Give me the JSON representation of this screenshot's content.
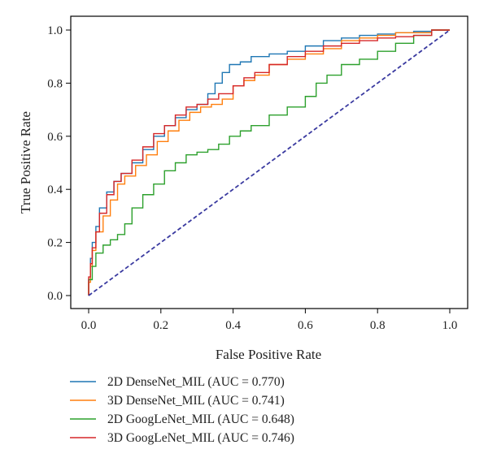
{
  "chart_data": {
    "type": "line",
    "xlabel": "False Positive Rate",
    "ylabel": "True Positive Rate",
    "xlim": [
      -0.05,
      1.05
    ],
    "ylim": [
      -0.04,
      1.04
    ],
    "xticks": [
      0.0,
      0.2,
      0.4,
      0.6,
      0.8,
      1.0
    ],
    "yticks": [
      0.0,
      0.2,
      0.4,
      0.6,
      0.8,
      1.0
    ],
    "tick_labels_x": [
      "0.0",
      "0.2",
      "0.4",
      "0.6",
      "0.8",
      "1.0"
    ],
    "tick_labels_y": [
      "0.0",
      "0.2",
      "0.4",
      "0.6",
      "0.8",
      "1.0"
    ],
    "grid": false,
    "legend_position": "bottom",
    "series": [
      {
        "name": "2D DenseNet_MIL (AUC = 0.770)",
        "color": "#1f77b4",
        "x": [
          0,
          0.005,
          0.01,
          0.02,
          0.03,
          0.05,
          0.07,
          0.09,
          0.12,
          0.15,
          0.18,
          0.21,
          0.24,
          0.27,
          0.3,
          0.33,
          0.35,
          0.37,
          0.39,
          0.42,
          0.45,
          0.5,
          0.55,
          0.6,
          0.65,
          0.7,
          0.75,
          0.8,
          0.85,
          0.9,
          0.95,
          1.0
        ],
        "y": [
          0,
          0.06,
          0.14,
          0.2,
          0.26,
          0.33,
          0.39,
          0.43,
          0.46,
          0.5,
          0.55,
          0.6,
          0.64,
          0.67,
          0.7,
          0.72,
          0.76,
          0.8,
          0.84,
          0.87,
          0.88,
          0.9,
          0.91,
          0.92,
          0.94,
          0.96,
          0.97,
          0.98,
          0.985,
          0.99,
          0.995,
          1.0
        ]
      },
      {
        "name": "3D DenseNet_MIL (AUC = 0.741)",
        "color": "#ff7f0e",
        "x": [
          0,
          0.005,
          0.01,
          0.02,
          0.04,
          0.06,
          0.08,
          0.1,
          0.13,
          0.16,
          0.19,
          0.22,
          0.25,
          0.28,
          0.31,
          0.34,
          0.37,
          0.4,
          0.43,
          0.46,
          0.5,
          0.55,
          0.6,
          0.65,
          0.7,
          0.75,
          0.8,
          0.85,
          0.9,
          0.95,
          1.0
        ],
        "y": [
          0,
          0.05,
          0.11,
          0.17,
          0.24,
          0.3,
          0.36,
          0.42,
          0.45,
          0.49,
          0.53,
          0.58,
          0.62,
          0.66,
          0.69,
          0.71,
          0.72,
          0.74,
          0.79,
          0.81,
          0.83,
          0.87,
          0.89,
          0.91,
          0.93,
          0.96,
          0.97,
          0.98,
          0.99,
          0.99,
          1.0
        ]
      },
      {
        "name": "2D GoogLeNet_MIL (AUC = 0.648)",
        "color": "#2ca02c",
        "x": [
          0,
          0.01,
          0.02,
          0.04,
          0.06,
          0.08,
          0.1,
          0.12,
          0.15,
          0.18,
          0.21,
          0.24,
          0.27,
          0.3,
          0.33,
          0.36,
          0.39,
          0.42,
          0.45,
          0.5,
          0.55,
          0.6,
          0.63,
          0.66,
          0.7,
          0.75,
          0.8,
          0.85,
          0.9,
          0.95,
          1.0
        ],
        "y": [
          0,
          0.06,
          0.11,
          0.16,
          0.19,
          0.21,
          0.23,
          0.27,
          0.33,
          0.38,
          0.42,
          0.47,
          0.5,
          0.53,
          0.54,
          0.55,
          0.57,
          0.6,
          0.62,
          0.64,
          0.68,
          0.71,
          0.75,
          0.8,
          0.83,
          0.87,
          0.89,
          0.92,
          0.95,
          0.98,
          1.0
        ]
      },
      {
        "name": "3D GoogLeNet_MIL (AUC = 0.746)",
        "color": "#d62728",
        "x": [
          0,
          0.005,
          0.01,
          0.02,
          0.03,
          0.05,
          0.07,
          0.09,
          0.12,
          0.15,
          0.18,
          0.21,
          0.24,
          0.27,
          0.3,
          0.33,
          0.36,
          0.4,
          0.43,
          0.46,
          0.5,
          0.55,
          0.6,
          0.65,
          0.7,
          0.75,
          0.8,
          0.85,
          0.9,
          0.95,
          1.0
        ],
        "y": [
          0,
          0.07,
          0.12,
          0.18,
          0.24,
          0.31,
          0.38,
          0.43,
          0.46,
          0.51,
          0.56,
          0.61,
          0.64,
          0.68,
          0.71,
          0.72,
          0.74,
          0.76,
          0.79,
          0.82,
          0.84,
          0.87,
          0.9,
          0.92,
          0.94,
          0.95,
          0.96,
          0.97,
          0.975,
          0.98,
          1.0
        ]
      },
      {
        "name": "",
        "color": "#3a3aa0",
        "dashed": true,
        "x": [
          0,
          1
        ],
        "y": [
          0,
          1
        ]
      }
    ]
  }
}
